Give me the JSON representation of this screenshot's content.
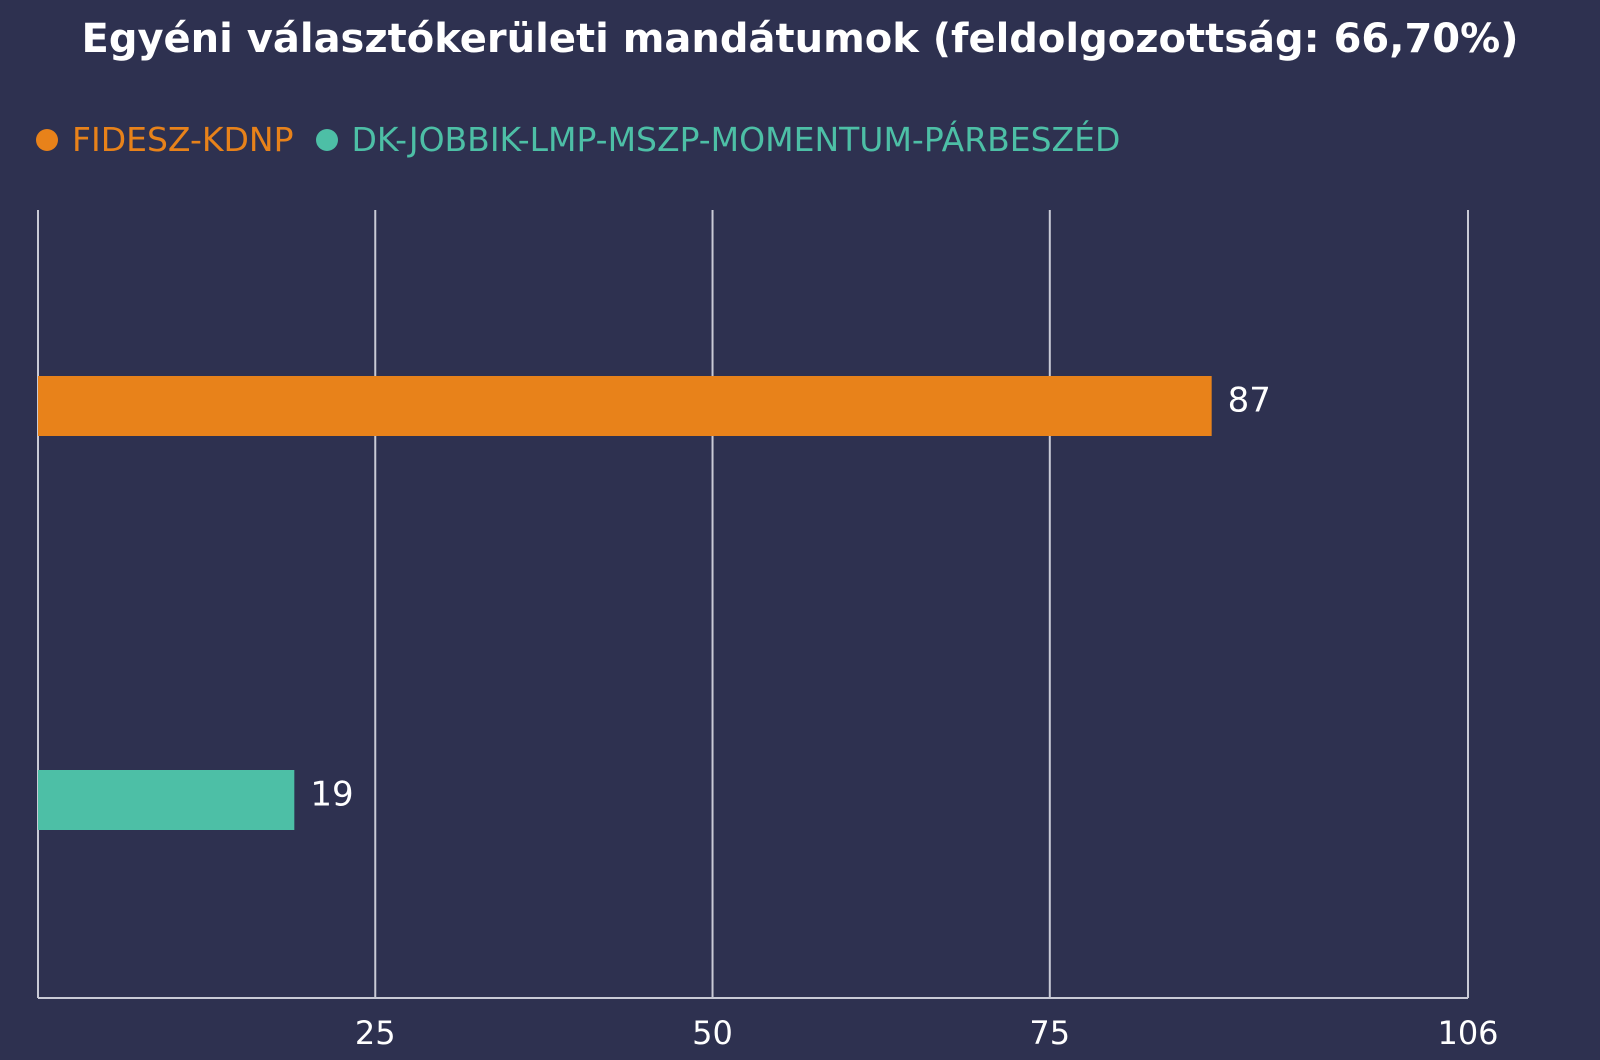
{
  "chart_data": {
    "type": "bar",
    "orientation": "horizontal",
    "title": "Egyéni választókerületi mandátumok (feldolgozottság: 66,70%)",
    "categories": [
      "FIDESZ-KDNP",
      "DK-JOBBIK-LMP-MSZP-MOMENTUM-PÁRBESZÉD"
    ],
    "values": [
      87,
      19
    ],
    "colors": [
      "#e8821a",
      "#4dbfa6"
    ],
    "data_labels": [
      "87",
      "19"
    ],
    "xlim": [
      0,
      106
    ],
    "x_ticks": [
      25,
      50,
      75,
      106
    ],
    "x_tick_labels": [
      "25",
      "50",
      "75",
      "106"
    ],
    "grid": true,
    "legend_position": "top-left",
    "legend": [
      {
        "label": "FIDESZ-KDNP",
        "color": "#e8821a"
      },
      {
        "label": "DK-JOBBIK-LMP-MSZP-MOMENTUM-PÁRBESZÉD",
        "color": "#4dbfa6"
      }
    ]
  }
}
